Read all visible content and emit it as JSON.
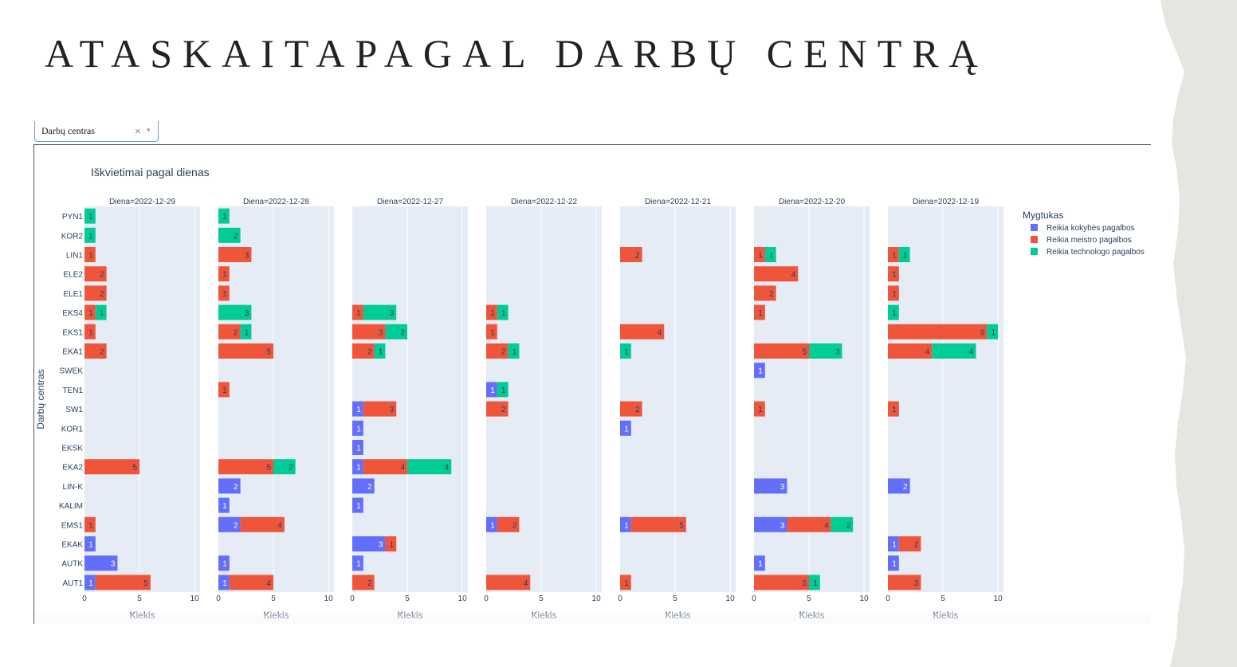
{
  "page": {
    "title": "ATASKAITAPAGAL DARBŲ CENTRĄ"
  },
  "filter": {
    "selected": "Darbų centras",
    "clear_icon": "×",
    "arrow_icon": "▾"
  },
  "colors": {
    "Reikia kokybės pagalbos": "#636efa",
    "Reikia meistro pagalbos": "#ef553b",
    "Reikia technologo pagalbos": "#00cc96",
    "plot_bg": "#e5ecf6"
  },
  "chart_data": {
    "type": "bar",
    "orientation": "horizontal",
    "barmode": "stack",
    "title": "Iškvietimai pagal dienas",
    "xlabel": "Kiekis",
    "ylabel": "Darbų centras",
    "xlim": [
      0,
      10.5
    ],
    "x_ticks": [
      0,
      5,
      10
    ],
    "legend": {
      "title": "Mygtukas",
      "position": "right"
    },
    "categories": [
      "PYN1",
      "KOR2",
      "LIN1",
      "ELE2",
      "ELE1",
      "EKS4",
      "EKS1",
      "EKA1",
      "SWEK",
      "TEN1",
      "SW1",
      "KOR1",
      "EKSK",
      "EKA2",
      "LIN-K",
      "KALIM",
      "EMS1",
      "EKAK",
      "AUTK",
      "AUT1"
    ],
    "series_order": [
      "Reikia kokybės pagalbos",
      "Reikia meistro pagalbos",
      "Reikia technologo pagalbos"
    ],
    "facets": [
      {
        "title": "Diena=2022-12-29",
        "values": {
          "Reikia kokybės pagalbos": [
            0,
            0,
            0,
            0,
            0,
            0,
            0,
            0,
            0,
            0,
            0,
            0,
            0,
            0,
            0,
            0,
            0,
            1,
            3,
            1
          ],
          "Reikia meistro pagalbos": [
            0,
            0,
            1,
            2,
            2,
            1,
            1,
            2,
            0,
            0,
            0,
            0,
            0,
            5,
            0,
            0,
            1,
            0,
            0,
            5
          ],
          "Reikia technologo pagalbos": [
            1,
            1,
            0,
            0,
            0,
            1,
            0,
            0,
            0,
            0,
            0,
            0,
            0,
            0,
            0,
            0,
            0,
            0,
            0,
            0
          ]
        }
      },
      {
        "title": "Diena=2022-12-28",
        "values": {
          "Reikia kokybės pagalbos": [
            0,
            0,
            0,
            0,
            0,
            0,
            0,
            0,
            0,
            0,
            0,
            0,
            0,
            0,
            2,
            1,
            2,
            0,
            1,
            1
          ],
          "Reikia meistro pagalbos": [
            0,
            0,
            3,
            1,
            1,
            0,
            2,
            5,
            0,
            1,
            0,
            0,
            0,
            5,
            0,
            0,
            4,
            0,
            0,
            4
          ],
          "Reikia technologo pagalbos": [
            1,
            2,
            0,
            0,
            0,
            3,
            1,
            0,
            0,
            0,
            0,
            0,
            0,
            2,
            0,
            0,
            0,
            0,
            0,
            0
          ]
        }
      },
      {
        "title": "Diena=2022-12-27",
        "values": {
          "Reikia kokybės pagalbos": [
            0,
            0,
            0,
            0,
            0,
            0,
            0,
            0,
            0,
            0,
            1,
            1,
            1,
            1,
            2,
            1,
            0,
            3,
            1,
            0
          ],
          "Reikia meistro pagalbos": [
            0,
            0,
            0,
            0,
            0,
            1,
            3,
            2,
            0,
            0,
            3,
            0,
            0,
            4,
            0,
            0,
            0,
            1,
            0,
            2
          ],
          "Reikia technologo pagalbos": [
            0,
            0,
            0,
            0,
            0,
            3,
            2,
            1,
            0,
            0,
            0,
            0,
            0,
            4,
            0,
            0,
            0,
            0,
            0,
            0
          ]
        }
      },
      {
        "title": "Diena=2022-12-22",
        "values": {
          "Reikia kokybės pagalbos": [
            0,
            0,
            0,
            0,
            0,
            0,
            0,
            0,
            0,
            1,
            0,
            0,
            0,
            0,
            0,
            0,
            1,
            0,
            0,
            0
          ],
          "Reikia meistro pagalbos": [
            0,
            0,
            0,
            0,
            0,
            1,
            1,
            2,
            0,
            0,
            2,
            0,
            0,
            0,
            0,
            0,
            2,
            0,
            0,
            4
          ],
          "Reikia technologo pagalbos": [
            0,
            0,
            0,
            0,
            0,
            1,
            0,
            1,
            0,
            1,
            0,
            0,
            0,
            0,
            0,
            0,
            0,
            0,
            0,
            0
          ]
        }
      },
      {
        "title": "Diena=2022-12-21",
        "values": {
          "Reikia kokybės pagalbos": [
            0,
            0,
            0,
            0,
            0,
            0,
            0,
            0,
            0,
            0,
            0,
            1,
            0,
            0,
            0,
            0,
            1,
            0,
            0,
            0
          ],
          "Reikia meistro pagalbos": [
            0,
            0,
            2,
            0,
            0,
            0,
            4,
            0,
            0,
            0,
            2,
            0,
            0,
            0,
            0,
            0,
            5,
            0,
            0,
            1
          ],
          "Reikia technologo pagalbos": [
            0,
            0,
            0,
            0,
            0,
            0,
            0,
            1,
            0,
            0,
            0,
            0,
            0,
            0,
            0,
            0,
            0,
            0,
            0,
            0
          ]
        }
      },
      {
        "title": "Diena=2022-12-20",
        "values": {
          "Reikia kokybės pagalbos": [
            0,
            0,
            0,
            0,
            0,
            0,
            0,
            0,
            1,
            0,
            0,
            0,
            0,
            0,
            3,
            0,
            3,
            0,
            1,
            0
          ],
          "Reikia meistro pagalbos": [
            0,
            0,
            1,
            4,
            2,
            1,
            0,
            5,
            0,
            0,
            1,
            0,
            0,
            0,
            0,
            0,
            4,
            0,
            0,
            5
          ],
          "Reikia technologo pagalbos": [
            0,
            0,
            1,
            0,
            0,
            0,
            0,
            3,
            0,
            0,
            0,
            0,
            0,
            0,
            0,
            0,
            2,
            0,
            0,
            1
          ]
        }
      },
      {
        "title": "Diena=2022-12-19",
        "values": {
          "Reikia kokybės pagalbos": [
            0,
            0,
            0,
            0,
            0,
            0,
            0,
            0,
            0,
            0,
            0,
            0,
            0,
            0,
            2,
            0,
            0,
            1,
            1,
            0
          ],
          "Reikia meistro pagalbos": [
            0,
            0,
            1,
            1,
            1,
            0,
            9,
            4,
            0,
            0,
            1,
            0,
            0,
            0,
            0,
            0,
            0,
            2,
            0,
            3
          ],
          "Reikia technologo pagalbos": [
            0,
            0,
            1,
            0,
            0,
            1,
            1,
            4,
            0,
            0,
            0,
            0,
            0,
            0,
            0,
            0,
            0,
            0,
            0,
            0
          ]
        }
      }
    ]
  }
}
